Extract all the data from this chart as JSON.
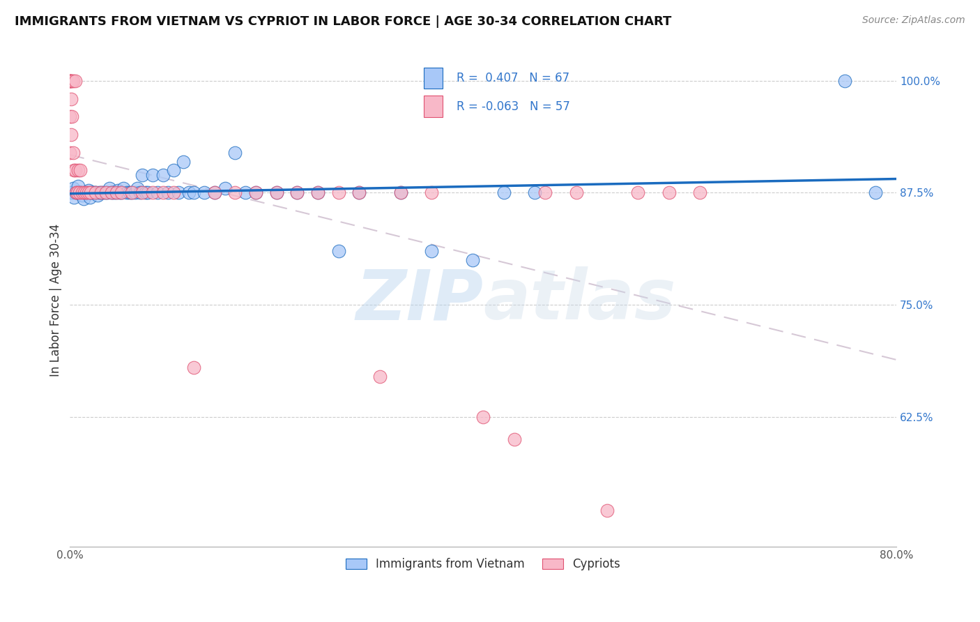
{
  "title": "IMMIGRANTS FROM VIETNAM VS CYPRIOT IN LABOR FORCE | AGE 30-34 CORRELATION CHART",
  "source": "Source: ZipAtlas.com",
  "ylabel": "In Labor Force | Age 30-34",
  "xmin": 0.0,
  "xmax": 0.8,
  "ymin": 0.48,
  "ymax": 1.03,
  "yticks": [
    0.625,
    0.75,
    0.875,
    1.0
  ],
  "ytick_labels": [
    "62.5%",
    "75.0%",
    "87.5%",
    "100.0%"
  ],
  "xticks": [
    0.0,
    0.1,
    0.2,
    0.3,
    0.4,
    0.5,
    0.6,
    0.7,
    0.8
  ],
  "xtick_labels": [
    "0.0%",
    "",
    "",
    "",
    "",
    "",
    "",
    "",
    "80.0%"
  ],
  "color_vietnam": "#a8c8f8",
  "color_vietnam_line": "#1a6bbf",
  "color_cypriot": "#f8b8c8",
  "color_cypriot_line": "#e05070",
  "color_cypriot_dash": "#d0a0b0",
  "R_vietnam": 0.407,
  "N_vietnam": 67,
  "R_cypriot": -0.063,
  "N_cypriot": 57,
  "watermark_zip": "ZIP",
  "watermark_atlas": "atlas",
  "vietnam_x": [
    0.002,
    0.003,
    0.004,
    0.006,
    0.007,
    0.008,
    0.01,
    0.012,
    0.013,
    0.015,
    0.016,
    0.018,
    0.019,
    0.02,
    0.022,
    0.024,
    0.025,
    0.027,
    0.028,
    0.03,
    0.032,
    0.034,
    0.036,
    0.038,
    0.04,
    0.042,
    0.044,
    0.046,
    0.048,
    0.05,
    0.052,
    0.055,
    0.058,
    0.06,
    0.063,
    0.065,
    0.068,
    0.07,
    0.073,
    0.075,
    0.08,
    0.085,
    0.09,
    0.095,
    0.1,
    0.105,
    0.11,
    0.115,
    0.12,
    0.13,
    0.14,
    0.15,
    0.16,
    0.17,
    0.18,
    0.2,
    0.22,
    0.24,
    0.26,
    0.28,
    0.32,
    0.35,
    0.39,
    0.42,
    0.45,
    0.75,
    0.78
  ],
  "vietnam_y": [
    0.875,
    0.88,
    0.87,
    0.875,
    0.875,
    0.882,
    0.875,
    0.872,
    0.868,
    0.875,
    0.875,
    0.878,
    0.87,
    0.875,
    0.875,
    0.875,
    0.875,
    0.872,
    0.875,
    0.875,
    0.875,
    0.875,
    0.875,
    0.88,
    0.875,
    0.875,
    0.875,
    0.878,
    0.875,
    0.875,
    0.88,
    0.875,
    0.875,
    0.875,
    0.875,
    0.88,
    0.875,
    0.895,
    0.875,
    0.875,
    0.895,
    0.875,
    0.895,
    0.875,
    0.9,
    0.875,
    0.91,
    0.875,
    0.875,
    0.875,
    0.875,
    0.88,
    0.92,
    0.875,
    0.875,
    0.875,
    0.875,
    0.875,
    0.81,
    0.875,
    0.875,
    0.81,
    0.8,
    0.875,
    0.875,
    1.0,
    0.875
  ],
  "cypriot_x": [
    0.0,
    0.0,
    0.0,
    0.0,
    0.0,
    0.0,
    0.001,
    0.001,
    0.001,
    0.002,
    0.002,
    0.003,
    0.003,
    0.004,
    0.005,
    0.005,
    0.006,
    0.007,
    0.008,
    0.009,
    0.01,
    0.012,
    0.014,
    0.016,
    0.018,
    0.02,
    0.025,
    0.03,
    0.035,
    0.04,
    0.045,
    0.05,
    0.06,
    0.07,
    0.08,
    0.09,
    0.1,
    0.12,
    0.14,
    0.16,
    0.18,
    0.2,
    0.22,
    0.24,
    0.26,
    0.28,
    0.3,
    0.32,
    0.35,
    0.4,
    0.43,
    0.46,
    0.49,
    0.52,
    0.55,
    0.58,
    0.61
  ],
  "cypriot_y": [
    1.0,
    1.0,
    1.0,
    1.0,
    0.96,
    0.92,
    1.0,
    0.98,
    0.94,
    1.0,
    0.96,
    1.0,
    0.92,
    0.9,
    1.0,
    0.9,
    0.875,
    0.875,
    0.9,
    0.875,
    0.9,
    0.875,
    0.875,
    0.875,
    0.875,
    0.875,
    0.875,
    0.875,
    0.875,
    0.875,
    0.875,
    0.875,
    0.875,
    0.875,
    0.875,
    0.875,
    0.875,
    0.68,
    0.875,
    0.875,
    0.875,
    0.875,
    0.875,
    0.875,
    0.875,
    0.875,
    0.67,
    0.875,
    0.875,
    0.625,
    0.6,
    0.875,
    0.875,
    0.52,
    0.875,
    0.875,
    0.875
  ]
}
